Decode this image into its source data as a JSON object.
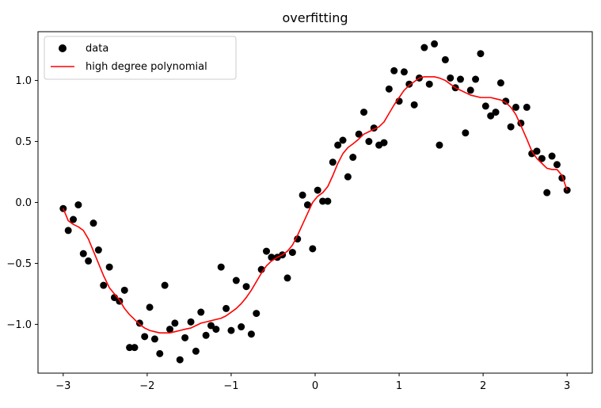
{
  "chart_data": {
    "type": "scatter",
    "title": "overfitting",
    "xlabel": "",
    "ylabel": "",
    "xlim": [
      -3.3,
      3.3
    ],
    "ylim": [
      -1.4,
      1.4
    ],
    "x_ticks": [
      -3,
      -2,
      -1,
      0,
      1,
      2,
      3
    ],
    "x_tick_labels": [
      "−3",
      "−2",
      "−1",
      "0",
      "1",
      "2",
      "3"
    ],
    "y_ticks": [
      -1.0,
      -0.5,
      0.0,
      0.5,
      1.0
    ],
    "y_tick_labels": [
      "−1.0",
      "−0.5",
      "0.0",
      "0.5",
      "1.0"
    ],
    "grid": false,
    "legend_position": "top-left",
    "series": [
      {
        "name": "data",
        "kind": "scatter",
        "color": "#000000",
        "points": [
          [
            -3.0,
            -0.05
          ],
          [
            -2.94,
            -0.23
          ],
          [
            -2.88,
            -0.14
          ],
          [
            -2.82,
            -0.02
          ],
          [
            -2.76,
            -0.42
          ],
          [
            -2.7,
            -0.48
          ],
          [
            -2.64,
            -0.17
          ],
          [
            -2.58,
            -0.39
          ],
          [
            -2.52,
            -0.68
          ],
          [
            -2.45,
            -0.53
          ],
          [
            -2.39,
            -0.78
          ],
          [
            -2.33,
            -0.81
          ],
          [
            -2.27,
            -0.72
          ],
          [
            -2.21,
            -1.19
          ],
          [
            -2.15,
            -1.19
          ],
          [
            -2.09,
            -0.99
          ],
          [
            -2.03,
            -1.1
          ],
          [
            -1.97,
            -0.86
          ],
          [
            -1.91,
            -1.12
          ],
          [
            -1.85,
            -1.24
          ],
          [
            -1.79,
            -0.68
          ],
          [
            -1.73,
            -1.04
          ],
          [
            -1.67,
            -0.99
          ],
          [
            -1.61,
            -1.29
          ],
          [
            -1.55,
            -1.11
          ],
          [
            -1.48,
            -0.98
          ],
          [
            -1.42,
            -1.22
          ],
          [
            -1.36,
            -0.9
          ],
          [
            -1.3,
            -1.09
          ],
          [
            -1.24,
            -1.01
          ],
          [
            -1.18,
            -1.04
          ],
          [
            -1.12,
            -0.53
          ],
          [
            -1.06,
            -0.87
          ],
          [
            -1.0,
            -1.05
          ],
          [
            -0.94,
            -0.64
          ],
          [
            -0.88,
            -1.02
          ],
          [
            -0.82,
            -0.69
          ],
          [
            -0.76,
            -1.08
          ],
          [
            -0.7,
            -0.91
          ],
          [
            -0.64,
            -0.55
          ],
          [
            -0.58,
            -0.4
          ],
          [
            -0.52,
            -0.45
          ],
          [
            -0.45,
            -0.45
          ],
          [
            -0.39,
            -0.43
          ],
          [
            -0.33,
            -0.62
          ],
          [
            -0.27,
            -0.41
          ],
          [
            -0.21,
            -0.3
          ],
          [
            -0.15,
            0.06
          ],
          [
            -0.09,
            -0.02
          ],
          [
            -0.03,
            -0.38
          ],
          [
            0.03,
            0.1
          ],
          [
            0.09,
            0.01
          ],
          [
            0.15,
            0.01
          ],
          [
            0.21,
            0.33
          ],
          [
            0.27,
            0.47
          ],
          [
            0.33,
            0.51
          ],
          [
            0.39,
            0.21
          ],
          [
            0.45,
            0.37
          ],
          [
            0.52,
            0.56
          ],
          [
            0.58,
            0.74
          ],
          [
            0.64,
            0.5
          ],
          [
            0.7,
            0.61
          ],
          [
            0.76,
            0.47
          ],
          [
            0.82,
            0.49
          ],
          [
            0.88,
            0.93
          ],
          [
            0.94,
            1.08
          ],
          [
            1.0,
            0.83
          ],
          [
            1.06,
            1.07
          ],
          [
            1.12,
            0.97
          ],
          [
            1.18,
            0.8
          ],
          [
            1.24,
            1.02
          ],
          [
            1.3,
            1.27
          ],
          [
            1.36,
            0.97
          ],
          [
            1.42,
            1.3
          ],
          [
            1.48,
            0.47
          ],
          [
            1.55,
            1.17
          ],
          [
            1.61,
            1.02
          ],
          [
            1.67,
            0.94
          ],
          [
            1.73,
            1.01
          ],
          [
            1.79,
            0.57
          ],
          [
            1.85,
            0.92
          ],
          [
            1.91,
            1.01
          ],
          [
            1.97,
            1.22
          ],
          [
            2.03,
            0.79
          ],
          [
            2.09,
            0.71
          ],
          [
            2.15,
            0.74
          ],
          [
            2.21,
            0.98
          ],
          [
            2.27,
            0.83
          ],
          [
            2.33,
            0.62
          ],
          [
            2.39,
            0.78
          ],
          [
            2.45,
            0.65
          ],
          [
            2.52,
            0.78
          ],
          [
            2.58,
            0.4
          ],
          [
            2.64,
            0.42
          ],
          [
            2.7,
            0.36
          ],
          [
            2.76,
            0.08
          ],
          [
            2.82,
            0.38
          ],
          [
            2.88,
            0.31
          ],
          [
            2.94,
            0.2
          ],
          [
            3.0,
            0.1
          ]
        ]
      },
      {
        "name": "high degree polynomial",
        "kind": "line",
        "color": "#ff0000",
        "points": [
          [
            -3.0,
            -0.05
          ],
          [
            -2.94,
            -0.15
          ],
          [
            -2.88,
            -0.18
          ],
          [
            -2.82,
            -0.2
          ],
          [
            -2.76,
            -0.23
          ],
          [
            -2.7,
            -0.3
          ],
          [
            -2.64,
            -0.4
          ],
          [
            -2.58,
            -0.5
          ],
          [
            -2.52,
            -0.6
          ],
          [
            -2.45,
            -0.7
          ],
          [
            -2.39,
            -0.75
          ],
          [
            -2.33,
            -0.8
          ],
          [
            -2.27,
            -0.87
          ],
          [
            -2.21,
            -0.92
          ],
          [
            -2.15,
            -0.96
          ],
          [
            -2.09,
            -1.0
          ],
          [
            -2.03,
            -1.03
          ],
          [
            -1.97,
            -1.05
          ],
          [
            -1.91,
            -1.06
          ],
          [
            -1.85,
            -1.07
          ],
          [
            -1.79,
            -1.07
          ],
          [
            -1.73,
            -1.07
          ],
          [
            -1.67,
            -1.06
          ],
          [
            -1.61,
            -1.05
          ],
          [
            -1.55,
            -1.04
          ],
          [
            -1.48,
            -1.03
          ],
          [
            -1.42,
            -1.01
          ],
          [
            -1.36,
            -0.99
          ],
          [
            -1.3,
            -0.98
          ],
          [
            -1.24,
            -0.97
          ],
          [
            -1.18,
            -0.96
          ],
          [
            -1.12,
            -0.95
          ],
          [
            -1.06,
            -0.93
          ],
          [
            -1.0,
            -0.9
          ],
          [
            -0.94,
            -0.87
          ],
          [
            -0.88,
            -0.83
          ],
          [
            -0.82,
            -0.78
          ],
          [
            -0.76,
            -0.72
          ],
          [
            -0.7,
            -0.65
          ],
          [
            -0.64,
            -0.58
          ],
          [
            -0.58,
            -0.52
          ],
          [
            -0.52,
            -0.48
          ],
          [
            -0.45,
            -0.45
          ],
          [
            -0.39,
            -0.43
          ],
          [
            -0.33,
            -0.4
          ],
          [
            -0.27,
            -0.35
          ],
          [
            -0.21,
            -0.27
          ],
          [
            -0.15,
            -0.18
          ],
          [
            -0.09,
            -0.09
          ],
          [
            -0.03,
            0.0
          ],
          [
            0.03,
            0.05
          ],
          [
            0.09,
            0.08
          ],
          [
            0.15,
            0.13
          ],
          [
            0.21,
            0.22
          ],
          [
            0.27,
            0.32
          ],
          [
            0.33,
            0.4
          ],
          [
            0.39,
            0.45
          ],
          [
            0.45,
            0.48
          ],
          [
            0.52,
            0.52
          ],
          [
            0.58,
            0.56
          ],
          [
            0.64,
            0.58
          ],
          [
            0.7,
            0.6
          ],
          [
            0.76,
            0.62
          ],
          [
            0.82,
            0.66
          ],
          [
            0.88,
            0.73
          ],
          [
            0.94,
            0.8
          ],
          [
            1.0,
            0.86
          ],
          [
            1.06,
            0.92
          ],
          [
            1.12,
            0.96
          ],
          [
            1.18,
            0.99
          ],
          [
            1.24,
            1.02
          ],
          [
            1.3,
            1.03
          ],
          [
            1.36,
            1.03
          ],
          [
            1.42,
            1.03
          ],
          [
            1.48,
            1.02
          ],
          [
            1.55,
            1.0
          ],
          [
            1.61,
            0.97
          ],
          [
            1.67,
            0.94
          ],
          [
            1.73,
            0.92
          ],
          [
            1.79,
            0.9
          ],
          [
            1.85,
            0.88
          ],
          [
            1.91,
            0.87
          ],
          [
            1.97,
            0.86
          ],
          [
            2.03,
            0.86
          ],
          [
            2.09,
            0.86
          ],
          [
            2.15,
            0.85
          ],
          [
            2.21,
            0.84
          ],
          [
            2.27,
            0.82
          ],
          [
            2.33,
            0.78
          ],
          [
            2.39,
            0.72
          ],
          [
            2.45,
            0.63
          ],
          [
            2.52,
            0.52
          ],
          [
            2.58,
            0.42
          ],
          [
            2.64,
            0.36
          ],
          [
            2.7,
            0.32
          ],
          [
            2.76,
            0.28
          ],
          [
            2.82,
            0.27
          ],
          [
            2.88,
            0.27
          ],
          [
            2.94,
            0.22
          ],
          [
            3.0,
            0.1
          ]
        ]
      }
    ]
  }
}
